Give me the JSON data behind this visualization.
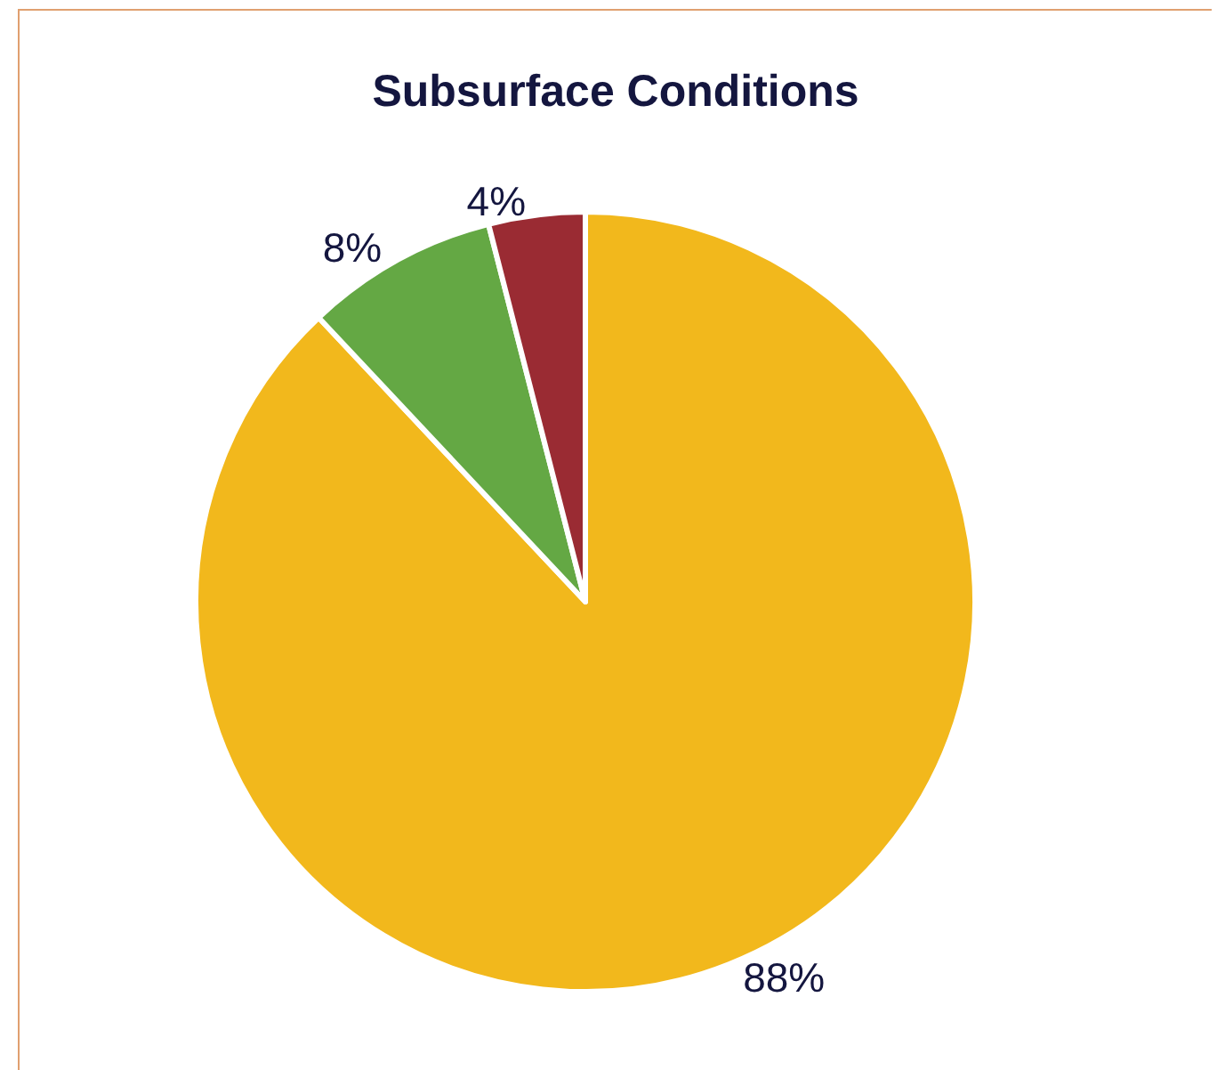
{
  "chart_data": {
    "type": "pie",
    "title": "Subsurface Conditions",
    "categories": [
      null,
      null,
      null
    ],
    "values": [
      88,
      8,
      4
    ],
    "colors": [
      "#f2b81c",
      "#64a844",
      "#9a2b33"
    ],
    "value_labels": [
      "88%",
      "8%",
      "4%"
    ]
  }
}
